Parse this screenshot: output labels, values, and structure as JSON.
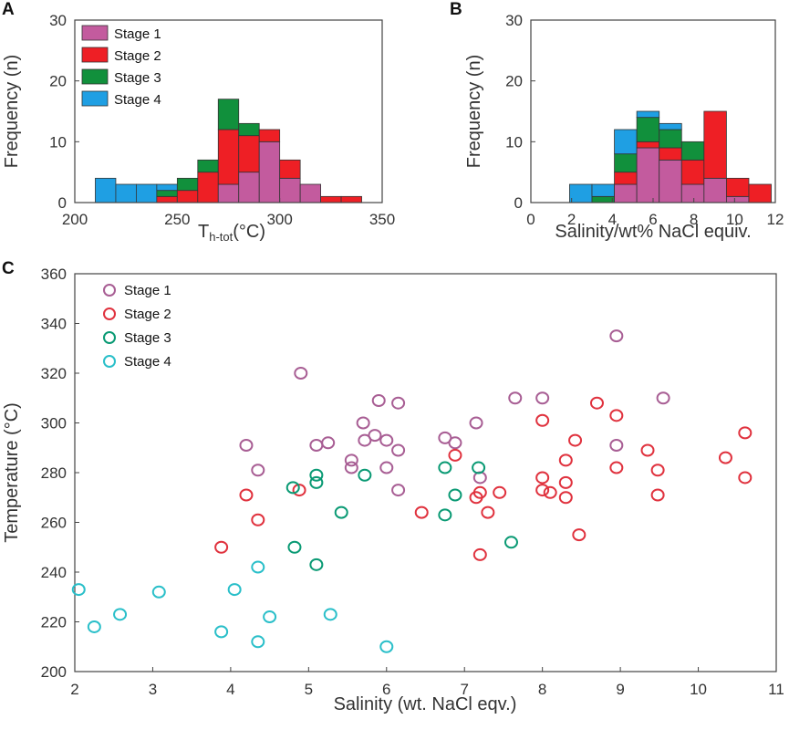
{
  "chart_data": [
    {
      "panel": "A",
      "type": "bar",
      "stacked": true,
      "xlabel_main": "T",
      "xlabel_sub": "h-tot",
      "xlabel_unit": "(°C)",
      "ylabel": "Frequency (n)",
      "xlim": [
        200,
        350
      ],
      "ylim": [
        0,
        30
      ],
      "xticks": [
        200,
        250,
        300,
        350
      ],
      "yticks": [
        0,
        10,
        20,
        30
      ],
      "bin_width": 10,
      "bins": [
        210,
        220,
        230,
        240,
        250,
        260,
        270,
        280,
        290,
        300,
        310,
        320,
        330
      ],
      "series": [
        {
          "name": "Stage 1",
          "color": "#c35b9e",
          "values": [
            0,
            0,
            0,
            0,
            0,
            0,
            3,
            5,
            10,
            4,
            3,
            0,
            0
          ]
        },
        {
          "name": "Stage 2",
          "color": "#ee1f25",
          "values": [
            0,
            0,
            0,
            1,
            2,
            5,
            9,
            6,
            2,
            3,
            0,
            1,
            1
          ]
        },
        {
          "name": "Stage 3",
          "color": "#11903c",
          "values": [
            0,
            0,
            0,
            1,
            2,
            2,
            5,
            2,
            0,
            0,
            0,
            0,
            0
          ]
        },
        {
          "name": "Stage 4",
          "color": "#1f9fe3",
          "values": [
            4,
            3,
            3,
            1,
            0,
            0,
            0,
            0,
            0,
            0,
            0,
            0,
            0
          ]
        }
      ]
    },
    {
      "panel": "B",
      "type": "bar",
      "stacked": true,
      "xlabel": "Salinity/wt% NaCl equiv.",
      "ylabel": "Frequency (n)",
      "xlim": [
        0,
        12
      ],
      "ylim": [
        0,
        30
      ],
      "xticks": [
        0,
        2,
        4,
        6,
        8,
        10,
        12
      ],
      "yticks": [
        0,
        10,
        20,
        30
      ],
      "bin_width": 1.1,
      "bins": [
        1.9,
        3.0,
        4.1,
        5.2,
        6.3,
        7.4,
        8.5,
        9.6,
        10.7
      ],
      "series": [
        {
          "name": "Stage 1",
          "color": "#c35b9e",
          "values": [
            0,
            0,
            3,
            9,
            7,
            3,
            4,
            1,
            0
          ]
        },
        {
          "name": "Stage 2",
          "color": "#ee1f25",
          "values": [
            0,
            0,
            2,
            1,
            2,
            4,
            11,
            3,
            3
          ]
        },
        {
          "name": "Stage 3",
          "color": "#11903c",
          "values": [
            0,
            1,
            3,
            4,
            3,
            3,
            0,
            0,
            0
          ]
        },
        {
          "name": "Stage 4",
          "color": "#1f9fe3",
          "values": [
            3,
            2,
            4,
            1,
            1,
            0,
            0,
            0,
            0
          ]
        }
      ]
    },
    {
      "panel": "C",
      "type": "scatter",
      "xlabel": "Salinity (wt. NaCl eqv.)",
      "ylabel": "Temperature (°C)",
      "xlim": [
        2,
        11
      ],
      "ylim": [
        200,
        360
      ],
      "xticks": [
        2,
        3,
        4,
        5,
        6,
        7,
        8,
        9,
        10,
        11
      ],
      "yticks": [
        200,
        220,
        240,
        260,
        280,
        300,
        320,
        340,
        360
      ],
      "series": [
        {
          "name": "Stage 1",
          "color": "#a85e94",
          "points": [
            [
              4.2,
              291
            ],
            [
              4.35,
              281
            ],
            [
              4.9,
              320
            ],
            [
              5.1,
              291
            ],
            [
              5.25,
              292
            ],
            [
              5.55,
              282
            ],
            [
              5.55,
              285
            ],
            [
              5.7,
              300
            ],
            [
              5.72,
              293
            ],
            [
              5.85,
              295
            ],
            [
              5.9,
              309
            ],
            [
              6.0,
              293
            ],
            [
              6.0,
              282
            ],
            [
              6.15,
              308
            ],
            [
              6.15,
              289
            ],
            [
              6.15,
              273
            ],
            [
              6.75,
              294
            ],
            [
              6.88,
              292
            ],
            [
              7.15,
              300
            ],
            [
              7.2,
              278
            ],
            [
              7.65,
              310
            ],
            [
              8.0,
              310
            ],
            [
              8.95,
              335
            ],
            [
              8.95,
              291
            ],
            [
              9.55,
              310
            ]
          ]
        },
        {
          "name": "Stage 2",
          "color": "#e0323e",
          "points": [
            [
              3.88,
              250
            ],
            [
              4.2,
              271
            ],
            [
              4.35,
              261
            ],
            [
              4.88,
              273
            ],
            [
              6.45,
              264
            ],
            [
              6.88,
              287
            ],
            [
              7.15,
              270
            ],
            [
              7.2,
              272
            ],
            [
              7.2,
              247
            ],
            [
              7.3,
              264
            ],
            [
              7.45,
              272
            ],
            [
              8.0,
              301
            ],
            [
              8.0,
              278
            ],
            [
              8.0,
              273
            ],
            [
              8.1,
              272
            ],
            [
              8.3,
              285
            ],
            [
              8.3,
              276
            ],
            [
              8.3,
              270
            ],
            [
              8.42,
              293
            ],
            [
              8.47,
              255
            ],
            [
              8.7,
              308
            ],
            [
              8.95,
              303
            ],
            [
              8.95,
              282
            ],
            [
              9.35,
              289
            ],
            [
              9.48,
              281
            ],
            [
              9.48,
              271
            ],
            [
              10.35,
              286
            ],
            [
              10.6,
              296
            ],
            [
              10.6,
              278
            ]
          ]
        },
        {
          "name": "Stage 3",
          "color": "#0a9a74",
          "points": [
            [
              4.8,
              274
            ],
            [
              4.82,
              250
            ],
            [
              5.1,
              279
            ],
            [
              5.1,
              276
            ],
            [
              5.1,
              243
            ],
            [
              5.42,
              264
            ],
            [
              5.72,
              279
            ],
            [
              6.75,
              282
            ],
            [
              6.75,
              263
            ],
            [
              6.88,
              271
            ],
            [
              7.18,
              282
            ],
            [
              7.6,
              252
            ]
          ]
        },
        {
          "name": "Stage 4",
          "color": "#2abfc9",
          "points": [
            [
              2.05,
              233
            ],
            [
              2.25,
              218
            ],
            [
              2.58,
              223
            ],
            [
              3.08,
              232
            ],
            [
              3.88,
              216
            ],
            [
              4.05,
              233
            ],
            [
              4.35,
              242
            ],
            [
              4.35,
              212
            ],
            [
              4.5,
              222
            ],
            [
              5.28,
              223
            ],
            [
              6.0,
              210
            ]
          ]
        }
      ]
    }
  ]
}
